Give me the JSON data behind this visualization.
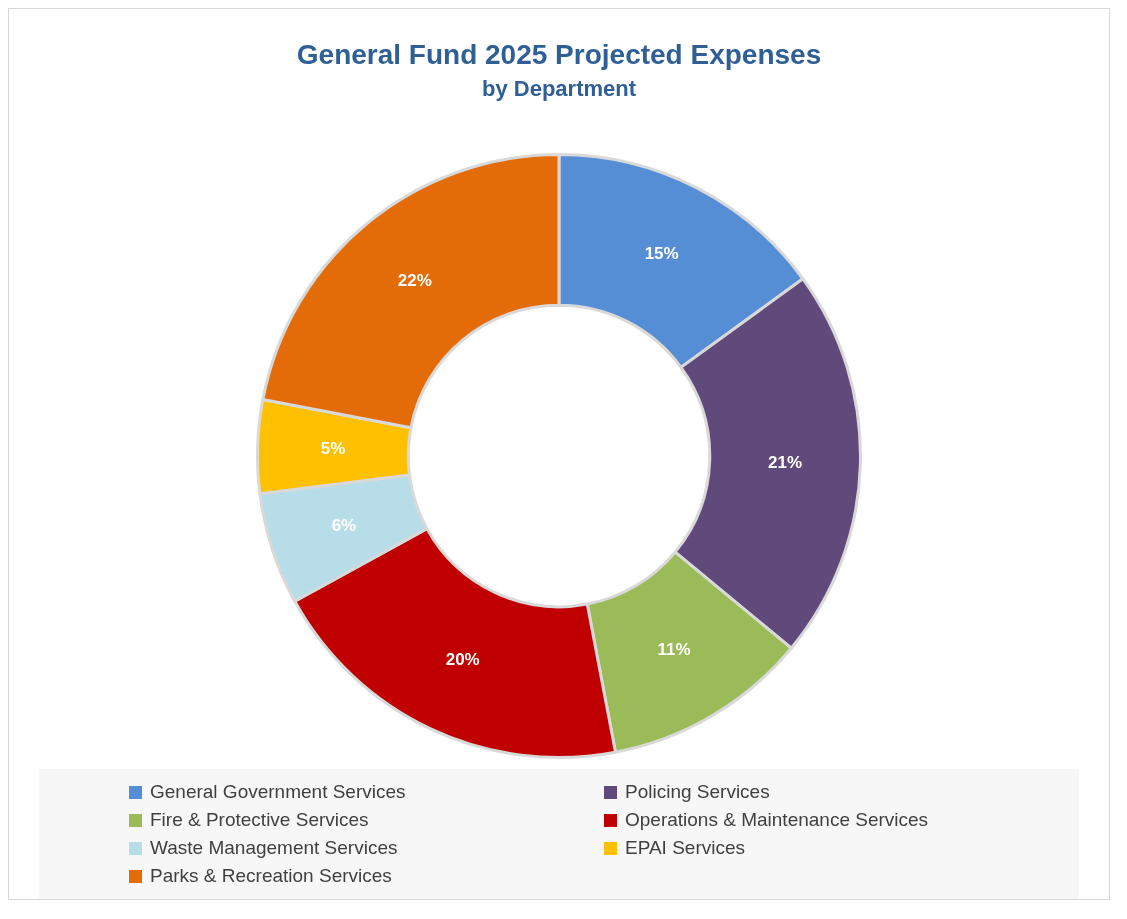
{
  "chart_data": {
    "type": "donut",
    "title": "General Fund 2025 Projected Expenses",
    "subtitle": "by Department",
    "categories": [
      "General Government Services",
      "Policing Services",
      "Fire & Protective Services",
      "Operations & Maintenance Services",
      "Waste Management Services",
      "EPAI Services",
      "Parks & Recreation Services"
    ],
    "values": [
      15,
      21,
      11,
      20,
      6,
      5,
      22
    ],
    "colors": [
      "#558ed5",
      "#604a7b",
      "#9bbb59",
      "#c00000",
      "#b7dee8",
      "#ffc000",
      "#e36c09"
    ],
    "value_labels": [
      "15%",
      "21%",
      "11%",
      "20%",
      "6%",
      "5%",
      "22%"
    ],
    "legend": "bottom"
  }
}
